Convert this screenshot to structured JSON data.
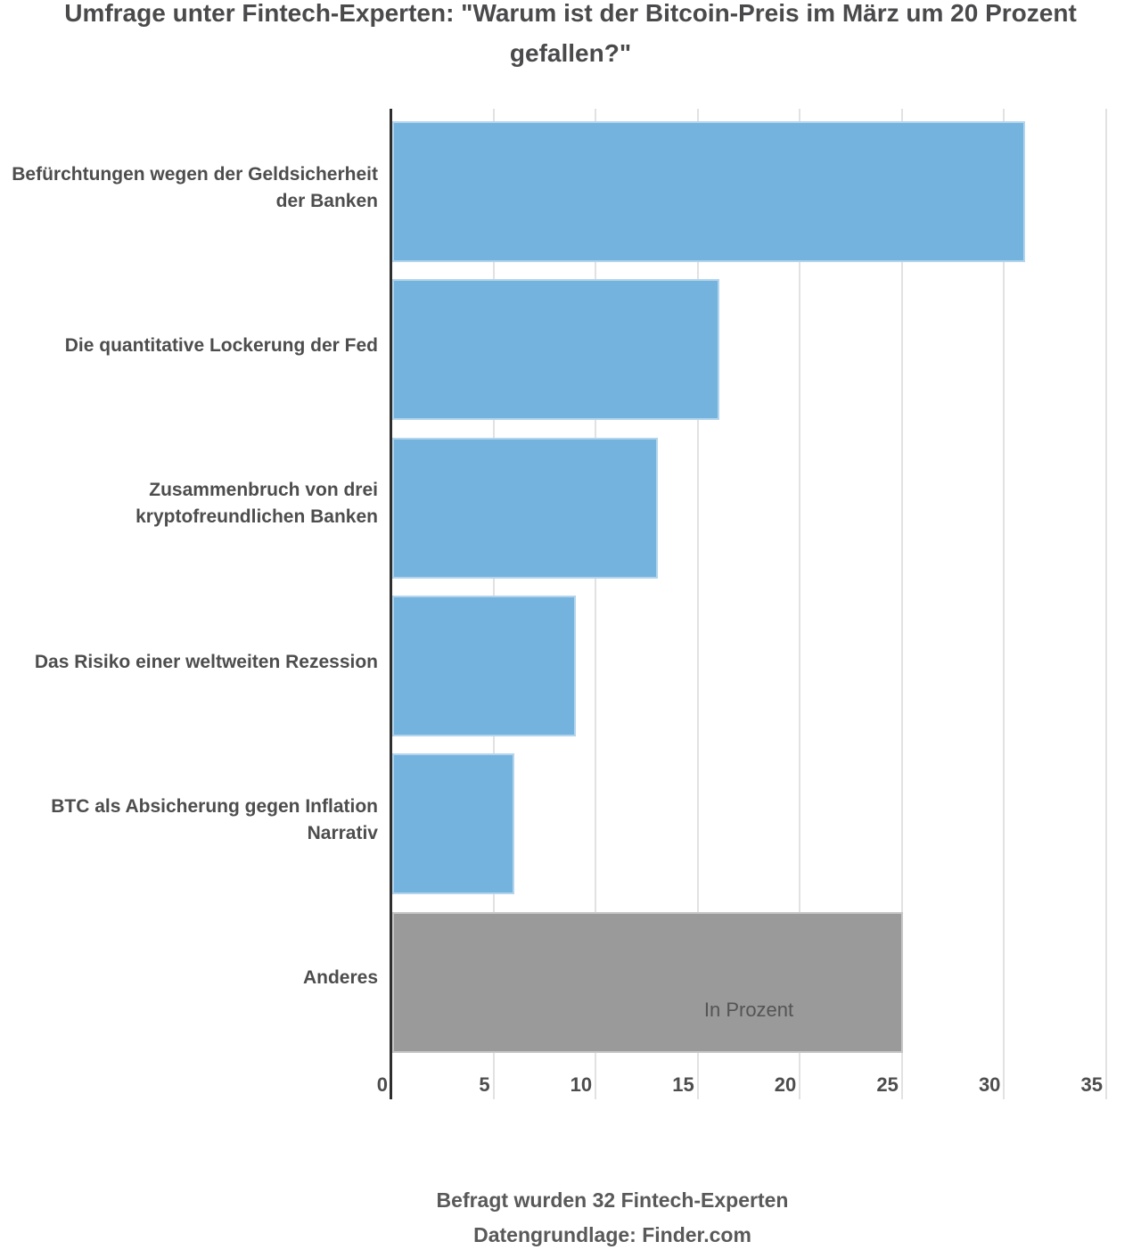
{
  "title": {
    "line1": "Umfrage unter Fintech-Experten: \"Warum ist der Bitcoin-Preis im März um 20 Prozent",
    "line2": "gefallen?\""
  },
  "chart_data": {
    "type": "bar",
    "orientation": "horizontal",
    "title": "Umfrage unter Fintech-Experten: \"Warum ist der Bitcoin-Preis im März um 20 Prozent gefallen?\"",
    "categories": [
      "Befürchtungen wegen der Geldsicherheit der Banken",
      "Die quantitative Lockerung der Fed",
      "Zusammenbruch von drei kryptofreundlichen Banken",
      "Das Risiko einer weltweiten Rezession",
      "BTC als Absicherung gegen Inflation Narrativ",
      "Anderes"
    ],
    "values": [
      31,
      16,
      13,
      9,
      6,
      25
    ],
    "bar_colors": [
      "#74b3de",
      "#74b3de",
      "#74b3de",
      "#74b3de",
      "#74b3de",
      "#9a9a9a"
    ],
    "xlabel": "In Prozent",
    "xlim": [
      0,
      35
    ],
    "xticks": [
      0,
      5,
      10,
      15,
      20,
      25,
      30,
      35
    ],
    "grid": "vertical-only",
    "legend": "none",
    "footer": [
      "Befragt wurden 32 Fintech-Experten",
      "Datengrundlage: Finder.com"
    ]
  },
  "colors": {
    "bar_blue": "#74b3de",
    "bar_gray": "#9a9a9a",
    "gridline": "#e2e2e2",
    "axis_line": "#2e2e2e",
    "text_dark": "#4a4a4c",
    "text_label": "#4d4d4d",
    "text_muted": "#595959"
  }
}
